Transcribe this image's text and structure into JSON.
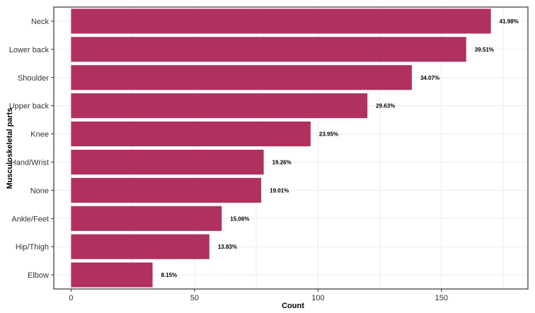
{
  "chart_data": {
    "type": "bar",
    "orientation": "horizontal",
    "categories": [
      "Neck",
      "Lower back",
      "Shoulder",
      "Upper back",
      "Knee",
      "Hand/Wrist",
      "None",
      "Ankle/Feet",
      "Hip/Thigh",
      "Elbow"
    ],
    "values": [
      170,
      160,
      138,
      120,
      97,
      78,
      77,
      61,
      56,
      33
    ],
    "data_labels": [
      "41.98%",
      "39.51%",
      "34.07%",
      "29.63%",
      "23.95%",
      "19.26%",
      "19.01%",
      "15.06%",
      "13.83%",
      "8.15%"
    ],
    "xlabel": "Count",
    "ylabel": "Musculoskeletal parts",
    "xlim": [
      -7,
      185
    ],
    "xticks": [
      0,
      50,
      100,
      150
    ],
    "xtick_labels": [
      "0",
      "50",
      "100",
      "150"
    ],
    "grid": true,
    "bar_color": "#b03060"
  }
}
